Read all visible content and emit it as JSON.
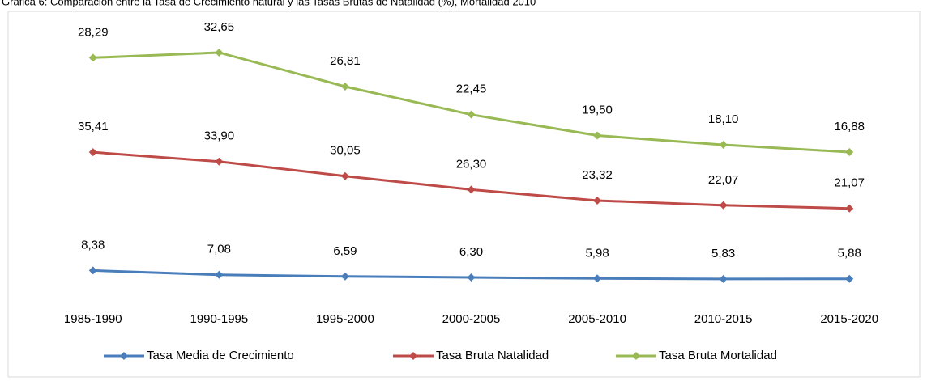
{
  "chart_data": {
    "type": "line",
    "stacked": true,
    "title": "Gráfica 6: Comparación entre la Tasa de Crecimiento natural y las Tasas Brutas de Natalidad (%), Mortalidad 2010",
    "categories": [
      "1985-1990",
      "1990-1995",
      "1995-2000",
      "2000-2005",
      "2005-2010",
      "2010-2015",
      "2015-2020"
    ],
    "series": [
      {
        "name": "Tasa Media de Crecimiento",
        "color": "#4a7ebb",
        "values": [
          8.38,
          7.08,
          6.59,
          6.3,
          5.98,
          5.83,
          5.88
        ],
        "value_labels": [
          "8,38",
          "7,08",
          "6,59",
          "6,30",
          "5,98",
          "5,83",
          "5,88"
        ]
      },
      {
        "name": "Tasa Bruta Natalidad",
        "color": "#be4b48",
        "values": [
          35.41,
          33.9,
          30.05,
          26.3,
          23.32,
          22.07,
          21.07
        ],
        "value_labels": [
          "35,41",
          "33,90",
          "30,05",
          "26,30",
          "23,32",
          "22,07",
          "21,07"
        ]
      },
      {
        "name": "Tasa Bruta Mortalidad",
        "color": "#98b954",
        "values": [
          28.29,
          32.65,
          26.81,
          22.45,
          19.5,
          18.1,
          16.88
        ],
        "value_labels": [
          "28,29",
          "32,65",
          "26,81",
          "22,45",
          "19,50",
          "18,10",
          "16,88"
        ]
      }
    ],
    "ylim": [
      0,
      85
    ],
    "legend": "bottom"
  }
}
